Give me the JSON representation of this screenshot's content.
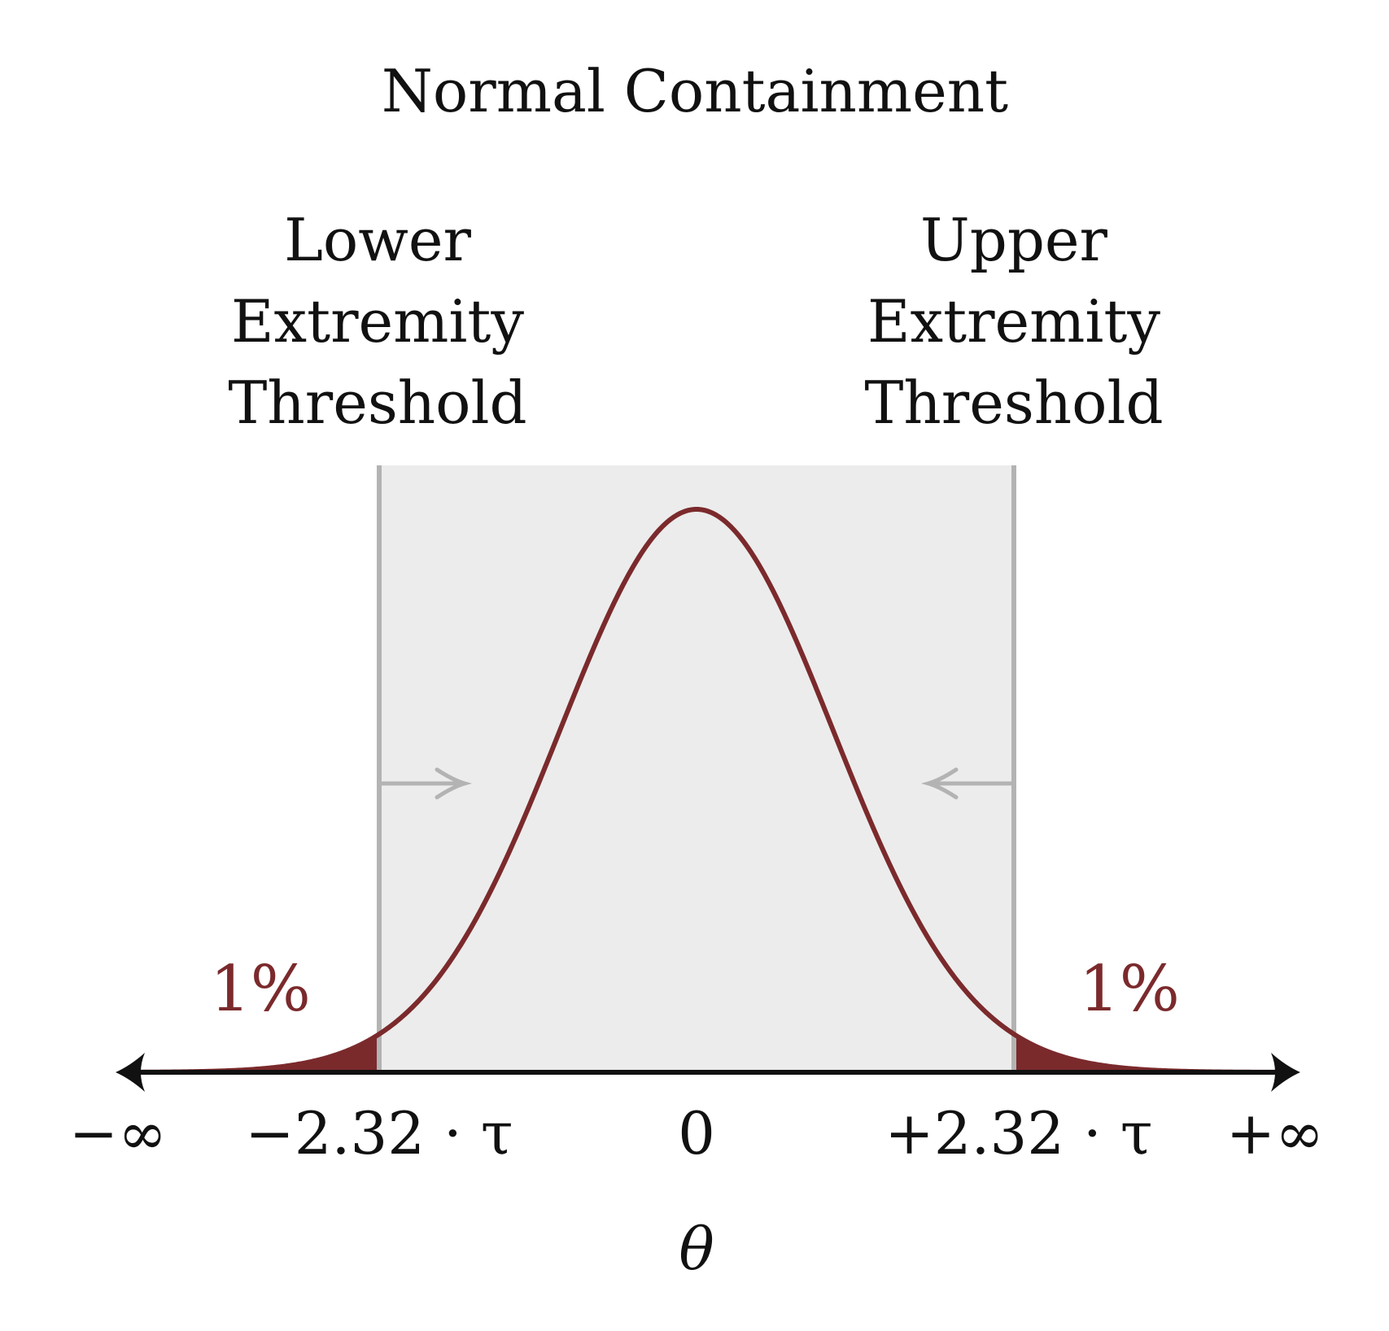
{
  "title": "Normal Containment",
  "colors": {
    "curve": "#7b2a2c",
    "tail_fill": "#7b2a2c",
    "region_fill": "#ececec",
    "threshold_line": "#b3b3b3",
    "axis": "#111111"
  },
  "thresholds": {
    "lower": {
      "label_lines": [
        "Lower",
        "Extremity",
        "Threshold"
      ],
      "z": -2.32,
      "tick": "−2.32 · τ",
      "tail_percent": "1%",
      "arrow_direction": "right"
    },
    "upper": {
      "label_lines": [
        "Upper",
        "Extremity",
        "Threshold"
      ],
      "z": 2.32,
      "tick": "+2.32 · τ",
      "tail_percent": "1%",
      "arrow_direction": "left"
    }
  },
  "axis": {
    "neg_inf": "−∞",
    "zero": "0",
    "pos_inf": "+∞",
    "label": "θ"
  }
}
